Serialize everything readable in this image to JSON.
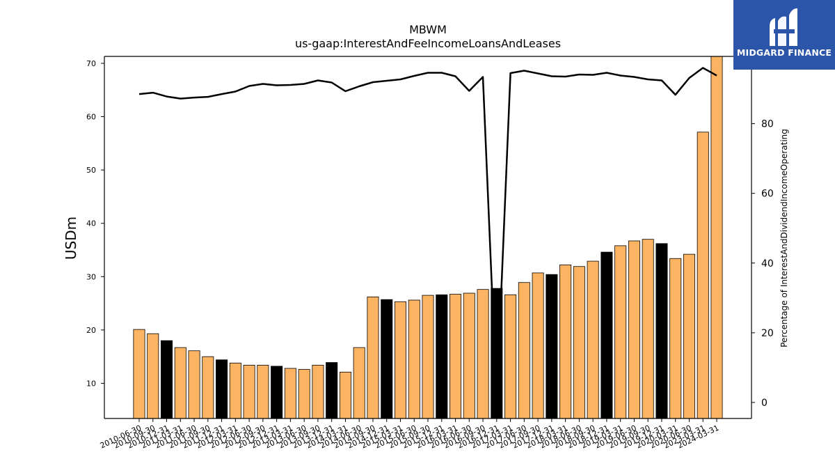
{
  "brand": {
    "name": "MIDGARD FINANCE"
  },
  "chart_data": {
    "type": "bar",
    "title": "MBWM",
    "subtitle": "us-gaap:InterestAndFeeIncomeLoansAndLeases",
    "ylabel": "USDm",
    "y2label": "Percentage of InterestAndDividendIncomeOperating",
    "ylim": [
      3.4,
      71.3
    ],
    "y2lim": [
      -4.6,
      99.3
    ],
    "yticks": [
      10,
      20,
      30,
      40,
      50,
      60,
      70
    ],
    "y2ticks": [
      0,
      20,
      40,
      60,
      80
    ],
    "colors": {
      "bar": "#fdb462",
      "bar_q4": "#000000",
      "line": "#000000"
    },
    "categories": [
      "2010-06-30",
      "2010-09-30",
      "2010-12-31",
      "2011-03-31",
      "2011-06-30",
      "2011-09-30",
      "2011-12-31",
      "2012-03-31",
      "2012-06-30",
      "2012-09-30",
      "2012-12-31",
      "2013-03-31",
      "2013-06-30",
      "2013-09-30",
      "2013-12-31",
      "2014-03-31",
      "2014-06-30",
      "2014-09-30",
      "2014-12-31",
      "2015-03-31",
      "2015-06-30",
      "2015-09-30",
      "2015-12-31",
      "2016-03-31",
      "2016-06-30",
      "2016-09-30",
      "2016-12-31",
      "2017-03-31",
      "2017-06-30",
      "2017-09-30",
      "2017-12-31",
      "2018-03-31",
      "2018-06-30",
      "2018-09-30",
      "2018-12-31",
      "2019-03-31",
      "2019-06-30",
      "2019-09-30",
      "2019-12-31",
      "2020-03-31",
      "2020-06-30",
      "2023-03-31",
      "2024-03-31"
    ],
    "series": [
      {
        "type": "bar",
        "values": [
          20.1,
          19.3,
          18.0,
          16.7,
          16.1,
          15.0,
          14.4,
          13.8,
          13.4,
          13.4,
          13.2,
          12.8,
          12.6,
          13.4,
          13.9,
          12.1,
          16.7,
          26.2,
          25.7,
          25.3,
          25.6,
          26.5,
          26.6,
          26.7,
          26.9,
          27.6,
          27.8,
          26.6,
          28.9,
          30.7,
          30.4,
          32.2,
          31.9,
          32.9,
          34.6,
          35.8,
          36.7,
          37.0,
          36.2,
          33.4,
          34.2,
          57.1,
          71.3
        ]
      },
      {
        "type": "line",
        "axis": "right",
        "values": [
          88.5,
          88.9,
          87.8,
          87.2,
          87.5,
          87.7,
          88.5,
          89.2,
          90.8,
          91.4,
          91.0,
          91.1,
          91.4,
          92.4,
          91.8,
          89.3,
          90.7,
          91.9,
          92.3,
          92.7,
          93.7,
          94.6,
          94.6,
          93.6,
          89.4,
          93.4,
          0.7,
          94.5,
          95.2,
          94.4,
          93.6,
          93.5,
          94.1,
          94.0,
          94.6,
          93.8,
          93.4,
          92.7,
          92.4,
          88.3,
          93.1,
          96.0,
          93.8
        ]
      }
    ]
  }
}
